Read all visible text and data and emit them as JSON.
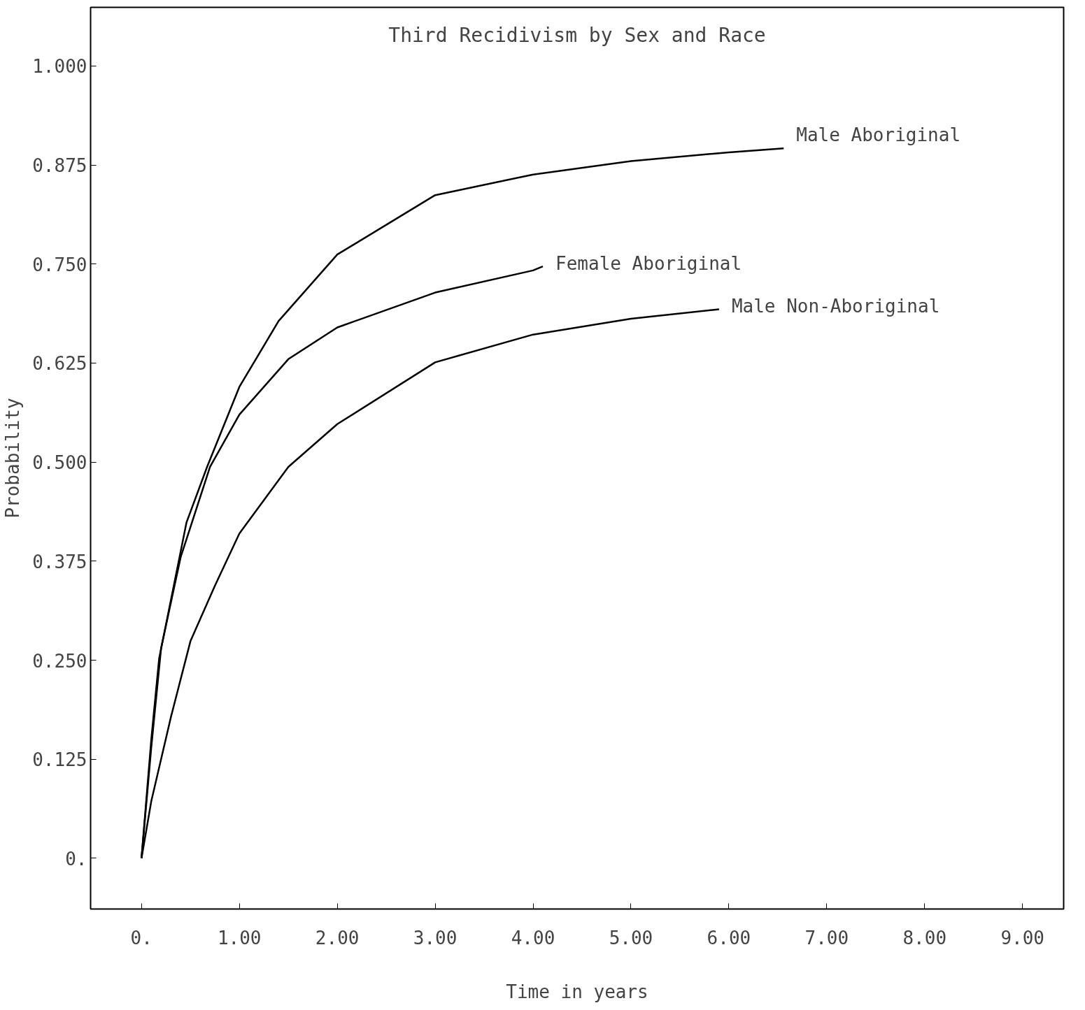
{
  "chart_data": {
    "type": "line",
    "title": "Third Recidivism by Sex and Race",
    "xlabel": "Time in years",
    "ylabel": "Probability",
    "xlim": [
      -0.52,
      9.42
    ],
    "ylim": [
      -0.064,
      1.074
    ],
    "xticks": [
      {
        "value": 0,
        "label": "0."
      },
      {
        "value": 1,
        "label": "1.00"
      },
      {
        "value": 2,
        "label": "2.00"
      },
      {
        "value": 3,
        "label": "3.00"
      },
      {
        "value": 4,
        "label": "4.00"
      },
      {
        "value": 5,
        "label": "5.00"
      },
      {
        "value": 6,
        "label": "6.00"
      },
      {
        "value": 7,
        "label": "7.00"
      },
      {
        "value": 8,
        "label": "8.00"
      },
      {
        "value": 9,
        "label": "9.00"
      }
    ],
    "yticks": [
      {
        "value": 0,
        "label": "0."
      },
      {
        "value": 0.125,
        "label": "0.125"
      },
      {
        "value": 0.25,
        "label": "0.250"
      },
      {
        "value": 0.375,
        "label": "0.375"
      },
      {
        "value": 0.5,
        "label": "0.500"
      },
      {
        "value": 0.625,
        "label": "0.625"
      },
      {
        "value": 0.75,
        "label": "0.750"
      },
      {
        "value": 0.875,
        "label": "0.875"
      },
      {
        "value": 1.0,
        "label": "1.000"
      }
    ],
    "grid": false,
    "legend": false,
    "marker": "none",
    "line_style": "solid",
    "series": [
      {
        "name": "Male Aboriginal",
        "color": "#000000",
        "x": [
          0,
          0.1,
          0.18,
          0.46,
          0.67,
          1.0,
          1.4,
          2.0,
          3.0,
          4.0,
          5.0,
          6.0,
          6.56
        ],
        "values": [
          0.0,
          0.15,
          0.252,
          0.424,
          0.494,
          0.595,
          0.678,
          0.762,
          0.837,
          0.863,
          0.88,
          0.891,
          0.896
        ]
      },
      {
        "name": "Female Aboriginal",
        "color": "#000000",
        "x": [
          0,
          0.1,
          0.2,
          0.4,
          0.7,
          1.0,
          1.5,
          2.0,
          3.0,
          4.0,
          4.1
        ],
        "values": [
          0.0,
          0.14,
          0.265,
          0.38,
          0.494,
          0.56,
          0.63,
          0.67,
          0.714,
          0.742,
          0.747
        ]
      },
      {
        "name": "Male Non-Aboriginal",
        "color": "#000000",
        "x": [
          0,
          0.1,
          0.3,
          0.5,
          0.75,
          1.0,
          1.5,
          2.0,
          3.0,
          4.0,
          5.0,
          5.9
        ],
        "values": [
          0.0,
          0.072,
          0.178,
          0.274,
          0.344,
          0.41,
          0.494,
          0.548,
          0.626,
          0.661,
          0.681,
          0.693
        ]
      }
    ]
  }
}
